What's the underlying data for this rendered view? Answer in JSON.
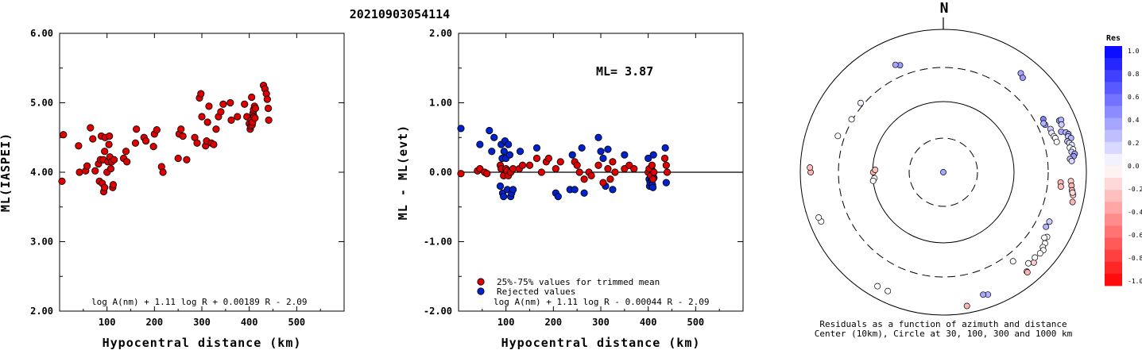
{
  "title": "20210903054114",
  "left_plot": {
    "ylabel": "ML(IASPEI)",
    "xlabel": "Hypocentral distance (km)",
    "formula": "log A(nm) + 1.11 log R + 0.00189 R - 2.09"
  },
  "middle_plot": {
    "ylabel": "ML - ML(evt)",
    "xlabel": "Hypocentral distance (km)",
    "ml_text": "ML= 3.87",
    "legend": [
      "25%-75% values for trimmed mean",
      "Rejected values"
    ],
    "formula": "log A(nm) + 1.11 log R - 0.00044 R - 2.09"
  },
  "polar_plot": {
    "north_label": "N",
    "caption_line1": "Residuals as a function of azimuth and distance",
    "caption_line2": "Center (10km), Circle at 30, 100, 300 and 1000 km"
  },
  "colorbar": {
    "title": "Res",
    "ticks": [
      "1.0",
      "0.8",
      "0.6",
      "0.4",
      "0.2",
      "0.0",
      "-0.2",
      "-0.4",
      "-0.6",
      "-0.8",
      "-1.0"
    ]
  },
  "colors": {
    "accepted": "#dd0000",
    "rejected": "#0022cc"
  },
  "chart_data": [
    {
      "type": "scatter",
      "name": "ml-vs-distance",
      "xlabel": "Hypocentral distance (km)",
      "ylabel": "ML(IASPEI)",
      "xlim": [
        0,
        600
      ],
      "ylim": [
        2.0,
        6.0
      ],
      "xticks": [
        "100",
        "200",
        "300",
        "400",
        "500"
      ],
      "yticks": [
        "2.00",
        "3.00",
        "4.00",
        "5.00",
        "6.00"
      ],
      "points": [
        [
          5,
          3.87
        ],
        [
          8,
          4.54
        ],
        [
          40,
          4.38
        ],
        [
          42,
          4.0
        ],
        [
          55,
          4.02
        ],
        [
          58,
          4.09
        ],
        [
          65,
          4.64
        ],
        [
          70,
          4.48
        ],
        [
          75,
          4.02
        ],
        [
          82,
          4.12
        ],
        [
          84,
          3.87
        ],
        [
          86,
          4.18
        ],
        [
          88,
          4.52
        ],
        [
          90,
          3.84
        ],
        [
          92,
          4.18
        ],
        [
          93,
          3.72
        ],
        [
          95,
          3.78
        ],
        [
          95,
          4.3
        ],
        [
          96,
          4.5
        ],
        [
          100,
          4.0
        ],
        [
          102,
          4.15
        ],
        [
          104,
          4.4
        ],
        [
          105,
          4.52
        ],
        [
          106,
          4.22
        ],
        [
          108,
          4.05
        ],
        [
          110,
          4.15
        ],
        [
          112,
          3.78
        ],
        [
          113,
          3.82
        ],
        [
          115,
          4.18
        ],
        [
          135,
          4.2
        ],
        [
          140,
          4.3
        ],
        [
          142,
          4.15
        ],
        [
          160,
          4.42
        ],
        [
          162,
          4.62
        ],
        [
          178,
          4.5
        ],
        [
          182,
          4.45
        ],
        [
          198,
          4.37
        ],
        [
          200,
          4.55
        ],
        [
          205,
          4.61
        ],
        [
          215,
          4.08
        ],
        [
          218,
          4.0
        ],
        [
          250,
          4.2
        ],
        [
          252,
          4.55
        ],
        [
          256,
          4.62
        ],
        [
          260,
          4.52
        ],
        [
          268,
          4.18
        ],
        [
          285,
          4.5
        ],
        [
          290,
          4.42
        ],
        [
          295,
          5.07
        ],
        [
          298,
          5.13
        ],
        [
          300,
          4.8
        ],
        [
          308,
          4.38
        ],
        [
          310,
          4.45
        ],
        [
          312,
          4.72
        ],
        [
          315,
          4.95
        ],
        [
          320,
          4.42
        ],
        [
          325,
          4.4
        ],
        [
          330,
          4.62
        ],
        [
          335,
          4.8
        ],
        [
          340,
          4.87
        ],
        [
          345,
          4.98
        ],
        [
          360,
          5.0
        ],
        [
          362,
          4.75
        ],
        [
          375,
          4.8
        ],
        [
          390,
          4.98
        ],
        [
          395,
          4.8
        ],
        [
          400,
          4.7
        ],
        [
          402,
          4.62
        ],
        [
          403,
          4.66
        ],
        [
          404,
          4.75
        ],
        [
          405,
          5.08
        ],
        [
          406,
          4.68
        ],
        [
          407,
          4.72
        ],
        [
          408,
          4.85
        ],
        [
          409,
          4.9
        ],
        [
          410,
          4.8
        ],
        [
          411,
          4.95
        ],
        [
          412,
          4.78
        ],
        [
          413,
          4.92
        ],
        [
          430,
          5.25
        ],
        [
          433,
          5.2
        ],
        [
          436,
          5.13
        ],
        [
          438,
          5.05
        ],
        [
          440,
          4.92
        ],
        [
          441,
          4.75
        ]
      ]
    },
    {
      "type": "scatter",
      "name": "residual-vs-distance",
      "xlabel": "Hypocentral distance (km)",
      "ylabel": "ML - ML(evt)",
      "xlim": [
        0,
        600
      ],
      "ylim": [
        -2.0,
        2.0
      ],
      "xticks": [
        "100",
        "200",
        "300",
        "400",
        "500"
      ],
      "yticks": [
        "-2.00",
        "-1.00",
        "0.00",
        "1.00",
        "2.00"
      ],
      "hline": 0.0,
      "series": [
        {
          "name": "25%-75% values for trimmed mean",
          "points": [
            [
              5,
              -0.02
            ],
            [
              40,
              0.02
            ],
            [
              45,
              0.05
            ],
            [
              55,
              0.0
            ],
            [
              60,
              -0.02
            ],
            [
              88,
              0.1
            ],
            [
              90,
              0.05
            ],
            [
              95,
              -0.05
            ],
            [
              100,
              0.05
            ],
            [
              102,
              0.02
            ],
            [
              105,
              -0.05
            ],
            [
              110,
              0.0
            ],
            [
              115,
              0.05
            ],
            [
              128,
              0.05
            ],
            [
              135,
              0.1
            ],
            [
              150,
              0.1
            ],
            [
              165,
              0.2
            ],
            [
              175,
              0.0
            ],
            [
              185,
              0.15
            ],
            [
              190,
              0.2
            ],
            [
              205,
              0.05
            ],
            [
              215,
              0.15
            ],
            [
              245,
              0.15
            ],
            [
              250,
              0.1
            ],
            [
              255,
              0.0
            ],
            [
              265,
              -0.1
            ],
            [
              275,
              0.0
            ],
            [
              280,
              -0.05
            ],
            [
              295,
              0.1
            ],
            [
              305,
              -0.15
            ],
            [
              315,
              0.05
            ],
            [
              320,
              -0.1
            ],
            [
              325,
              0.15
            ],
            [
              330,
              0.0
            ],
            [
              350,
              0.05
            ],
            [
              360,
              0.1
            ],
            [
              370,
              0.05
            ],
            [
              400,
              0.0
            ],
            [
              402,
              0.05
            ],
            [
              405,
              -0.05
            ],
            [
              408,
              0.1
            ],
            [
              410,
              -0.1
            ],
            [
              412,
              0.0
            ],
            [
              435,
              0.2
            ],
            [
              438,
              0.1
            ],
            [
              440,
              0.0
            ]
          ]
        },
        {
          "name": "Rejected values",
          "points": [
            [
              5,
              0.63
            ],
            [
              45,
              0.4
            ],
            [
              65,
              0.6
            ],
            [
              70,
              0.3
            ],
            [
              75,
              0.5
            ],
            [
              88,
              -0.2
            ],
            [
              90,
              0.4
            ],
            [
              92,
              0.2
            ],
            [
              93,
              -0.3
            ],
            [
              95,
              -0.35
            ],
            [
              96,
              0.3
            ],
            [
              98,
              0.45
            ],
            [
              100,
              0.2
            ],
            [
              103,
              -0.25
            ],
            [
              105,
              0.4
            ],
            [
              108,
              0.25
            ],
            [
              110,
              -0.35
            ],
            [
              112,
              -0.3
            ],
            [
              115,
              -0.25
            ],
            [
              130,
              0.3
            ],
            [
              165,
              0.35
            ],
            [
              205,
              -0.3
            ],
            [
              210,
              -0.35
            ],
            [
              235,
              -0.25
            ],
            [
              240,
              0.25
            ],
            [
              245,
              -0.25
            ],
            [
              260,
              0.35
            ],
            [
              265,
              -0.3
            ],
            [
              295,
              0.5
            ],
            [
              300,
              0.3
            ],
            [
              305,
              0.2
            ],
            [
              310,
              -0.2
            ],
            [
              315,
              0.33
            ],
            [
              325,
              -0.25
            ],
            [
              350,
              0.25
            ],
            [
              400,
              0.2
            ],
            [
              402,
              -0.1
            ],
            [
              403,
              -0.2
            ],
            [
              404,
              -0.15
            ],
            [
              405,
              -0.05
            ],
            [
              406,
              0.0
            ],
            [
              407,
              0.05
            ],
            [
              408,
              -0.12
            ],
            [
              409,
              -0.18
            ],
            [
              410,
              -0.22
            ],
            [
              411,
              0.25
            ],
            [
              412,
              -0.08
            ],
            [
              436,
              0.35
            ],
            [
              438,
              -0.15
            ]
          ]
        }
      ]
    },
    {
      "type": "scatter",
      "name": "polar-residuals",
      "coordinates": "azimuth_deg / distance_km / residual",
      "rings_km": [
        30,
        100,
        300,
        1000
      ],
      "rings_style": [
        "dashed",
        "solid",
        "dashed",
        "solid"
      ],
      "points": [
        [
          95,
          10,
          0.35
        ],
        [
          270,
          98,
          -0.3
        ],
        [
          272,
          92,
          -0.25
        ],
        [
          265,
          95,
          0.0
        ],
        [
          263,
          100,
          0.0
        ],
        [
          289,
          370,
          0.0
        ],
        [
          310,
          330,
          0.05
        ],
        [
          338,
          420,
          0.4
        ],
        [
          336,
          450,
          0.35
        ],
        [
          300,
          310,
          0.0
        ],
        [
          38,
          580,
          0.35
        ],
        [
          40,
          540,
          0.4
        ],
        [
          62,
          390,
          0.5
        ],
        [
          65,
          380,
          0.4
        ],
        [
          64,
          370,
          0.3
        ],
        [
          68,
          420,
          0.2
        ],
        [
          70,
          415,
          0.1
        ],
        [
          72,
          430,
          0.0
        ],
        [
          73,
          440,
          0.0
        ],
        [
          75,
          445,
          0.0
        ],
        [
          66,
          600,
          0.4
        ],
        [
          66,
          640,
          0.3
        ],
        [
          68,
          610,
          0.2
        ],
        [
          71,
          560,
          0.35
        ],
        [
          72,
          640,
          0.25
        ],
        [
          73,
          680,
          0.4
        ],
        [
          74,
          660,
          0.2
        ],
        [
          75,
          710,
          0.3
        ],
        [
          76,
          620,
          0.3
        ],
        [
          77,
          650,
          0.1
        ],
        [
          78,
          690,
          0.1
        ],
        [
          79,
          640,
          0.0
        ],
        [
          80,
          700,
          0.0
        ],
        [
          81,
          660,
          0.2
        ],
        [
          82,
          720,
          0.35
        ],
        [
          83,
          690,
          0.4
        ],
        [
          84,
          610,
          0.25
        ],
        [
          85,
          640,
          0.15
        ],
        [
          94,
          620,
          -0.2
        ],
        [
          96,
          640,
          -0.3
        ],
        [
          98,
          660,
          -0.25
        ],
        [
          100,
          700,
          -0.2
        ],
        [
          99,
          680,
          -0.15
        ],
        [
          103,
          720,
          -0.3
        ],
        [
          95,
          450,
          -0.3
        ],
        [
          97,
          460,
          -0.25
        ],
        [
          115,
          440,
          0.2
        ],
        [
          118,
          430,
          0.3
        ],
        [
          122,
          520,
          0.0
        ],
        [
          123,
          490,
          0.0
        ],
        [
          125,
          550,
          0.0
        ],
        [
          127,
          560,
          0.0
        ],
        [
          128,
          600,
          0.0
        ],
        [
          130,
          590,
          0.0
        ],
        [
          135,
          620,
          -0.2
        ],
        [
          133,
          570,
          0.0
        ],
        [
          137,
          560,
          0.0
        ],
        [
          140,
          660,
          0.0
        ],
        [
          140,
          680,
          -0.3
        ],
        [
          160,
          670,
          0.3
        ],
        [
          162,
          640,
          0.35
        ],
        [
          170,
          800,
          -0.3
        ],
        [
          142,
          390,
          0.0
        ],
        [
          205,
          690,
          0.0
        ],
        [
          210,
          700,
          0.0
        ],
        [
          248,
          700,
          0.0
        ],
        [
          250,
          720,
          0.0
        ],
        [
          270,
          720,
          -0.3
        ],
        [
          272,
          740,
          -0.25
        ]
      ]
    }
  ]
}
